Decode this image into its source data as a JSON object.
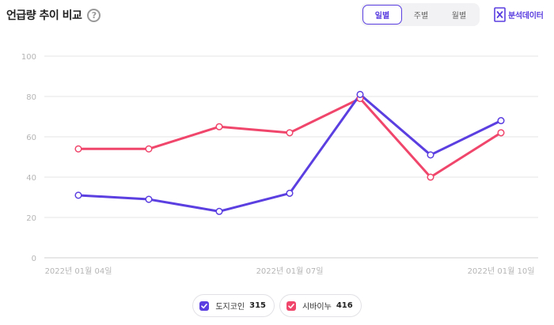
{
  "header": {
    "title": "언급량 추이 비교",
    "help_icon": "question-circle-icon",
    "period_tabs": [
      {
        "label": "일별",
        "active": true
      },
      {
        "label": "주별",
        "active": false
      },
      {
        "label": "월별",
        "active": false
      }
    ],
    "export_label": "분석데이터",
    "export_icon": "excel-icon"
  },
  "colors": {
    "accent": "#5b3fe0",
    "series_1": "#5b3fe0",
    "series_2": "#f0466c",
    "grid": "#e6e6e6",
    "tick": "#b5b5b5"
  },
  "legend": [
    {
      "name": "도지코인",
      "count": "315"
    },
    {
      "name": "시바이누",
      "count": "416"
    }
  ],
  "chart_data": {
    "type": "line",
    "title": "",
    "xlabel": "",
    "ylabel": "",
    "ylim": [
      0,
      100
    ],
    "yticks": [
      0,
      20,
      40,
      60,
      80,
      100
    ],
    "x": [
      "2022-01-04",
      "2022-01-05",
      "2022-01-06",
      "2022-01-07",
      "2022-01-08",
      "2022-01-09",
      "2022-01-10"
    ],
    "xtick_labels": [
      {
        "index": 0,
        "label": "2022년 01월 04일"
      },
      {
        "index": 3,
        "label": "2022년 01월 07일"
      },
      {
        "index": 6,
        "label": "2022년 01월 10일"
      }
    ],
    "grid": true,
    "legend_position": "bottom-center",
    "series": [
      {
        "name": "도지코인",
        "color": "#5b3fe0",
        "values": [
          31,
          29,
          23,
          32,
          81,
          51,
          68
        ]
      },
      {
        "name": "시바이누",
        "color": "#f0466c",
        "values": [
          54,
          54,
          65,
          62,
          79,
          40,
          62
        ]
      }
    ]
  }
}
